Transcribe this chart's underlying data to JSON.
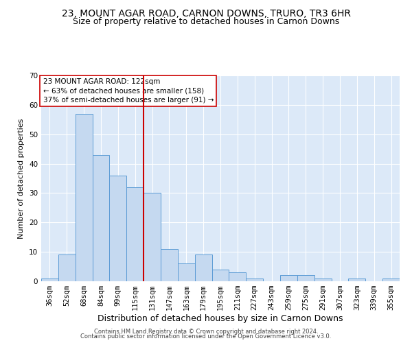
{
  "title": "23, MOUNT AGAR ROAD, CARNON DOWNS, TRURO, TR3 6HR",
  "subtitle": "Size of property relative to detached houses in Carnon Downs",
  "xlabel": "Distribution of detached houses by size in Carnon Downs",
  "ylabel": "Number of detached properties",
  "footer_line1": "Contains HM Land Registry data © Crown copyright and database right 2024.",
  "footer_line2": "Contains public sector information licensed under the Open Government Licence v3.0.",
  "bin_labels": [
    "36sqm",
    "52sqm",
    "68sqm",
    "84sqm",
    "99sqm",
    "115sqm",
    "131sqm",
    "147sqm",
    "163sqm",
    "179sqm",
    "195sqm",
    "211sqm",
    "227sqm",
    "243sqm",
    "259sqm",
    "275sqm",
    "291sqm",
    "307sqm",
    "323sqm",
    "339sqm",
    "355sqm"
  ],
  "bar_values": [
    1,
    9,
    57,
    43,
    36,
    32,
    30,
    11,
    6,
    9,
    4,
    3,
    1,
    0,
    2,
    2,
    1,
    0,
    1,
    0,
    1
  ],
  "bar_color": "#c5d9f0",
  "bar_edge_color": "#5b9bd5",
  "vline_x_index": 6,
  "vline_color": "#cc0000",
  "annotation_text": "23 MOUNT AGAR ROAD: 122sqm\n← 63% of detached houses are smaller (158)\n37% of semi-detached houses are larger (91) →",
  "annotation_box_color": "#ffffff",
  "annotation_box_edge_color": "#cc0000",
  "ylim": [
    0,
    70
  ],
  "yticks": [
    0,
    10,
    20,
    30,
    40,
    50,
    60,
    70
  ],
  "background_color": "#dce9f8",
  "title_fontsize": 10,
  "subtitle_fontsize": 9,
  "xlabel_fontsize": 9,
  "ylabel_fontsize": 8,
  "tick_fontsize": 7.5,
  "annotation_fontsize": 7.5,
  "footer_fontsize": 6
}
